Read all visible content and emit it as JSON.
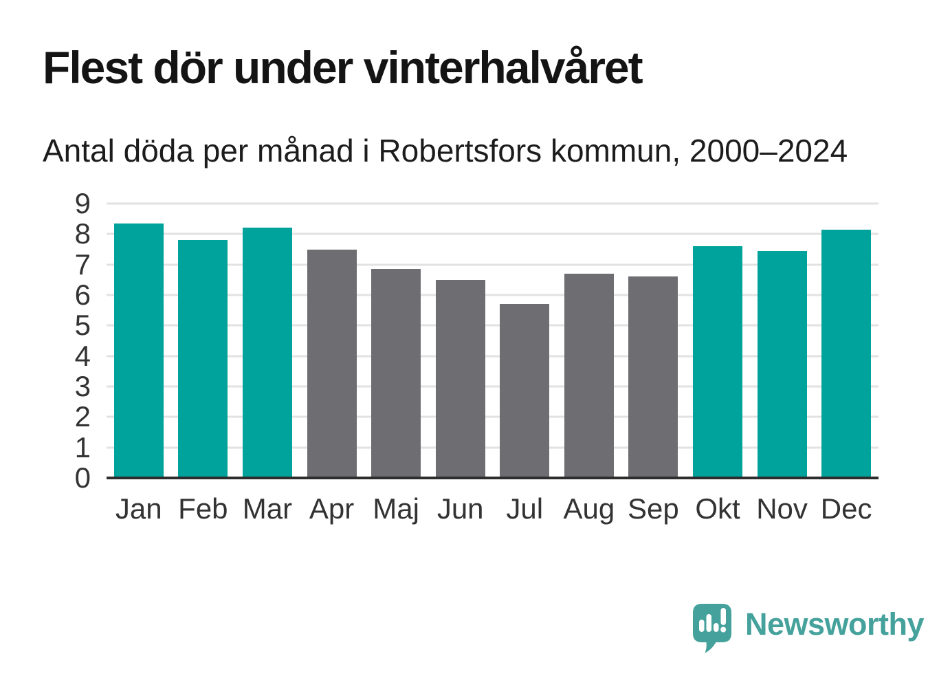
{
  "header": {
    "title": "Flest dör under vinterhalvåret",
    "subtitle": "Antal döda per månad i Robertsfors kommun, 2000–2024"
  },
  "chart_data": {
    "type": "bar",
    "title": "Flest dör under vinterhalvåret",
    "subtitle": "Antal döda per månad i Robertsfors kommun, 2000–2024",
    "categories": [
      "Jan",
      "Feb",
      "Mar",
      "Apr",
      "Maj",
      "Jun",
      "Jul",
      "Aug",
      "Sep",
      "Okt",
      "Nov",
      "Dec"
    ],
    "values": [
      8.35,
      7.8,
      8.2,
      7.5,
      6.85,
      6.5,
      5.7,
      6.7,
      6.6,
      7.6,
      7.45,
      8.15
    ],
    "bar_color_roles": [
      "highlight",
      "highlight",
      "highlight",
      "muted",
      "muted",
      "muted",
      "muted",
      "muted",
      "muted",
      "highlight",
      "highlight",
      "highlight"
    ],
    "highlighted_categories": [
      "Jan",
      "Feb",
      "Mar",
      "Okt",
      "Nov",
      "Dec"
    ],
    "xlabel": "",
    "ylabel": "",
    "ylim": [
      0,
      9
    ],
    "yticks": [
      0,
      1,
      2,
      3,
      4,
      5,
      6,
      7,
      8,
      9
    ],
    "grid": true,
    "legend_position": "none"
  },
  "colors": {
    "highlight": "#00a39b",
    "muted": "#6e6e72",
    "axis_line": "#2d2d2d",
    "grid_line": "#e2e2e2",
    "tick_text": "#333333",
    "title_text": "#141414",
    "logo": "#45a19b"
  },
  "footer": {
    "brand": "Newsworthy"
  }
}
